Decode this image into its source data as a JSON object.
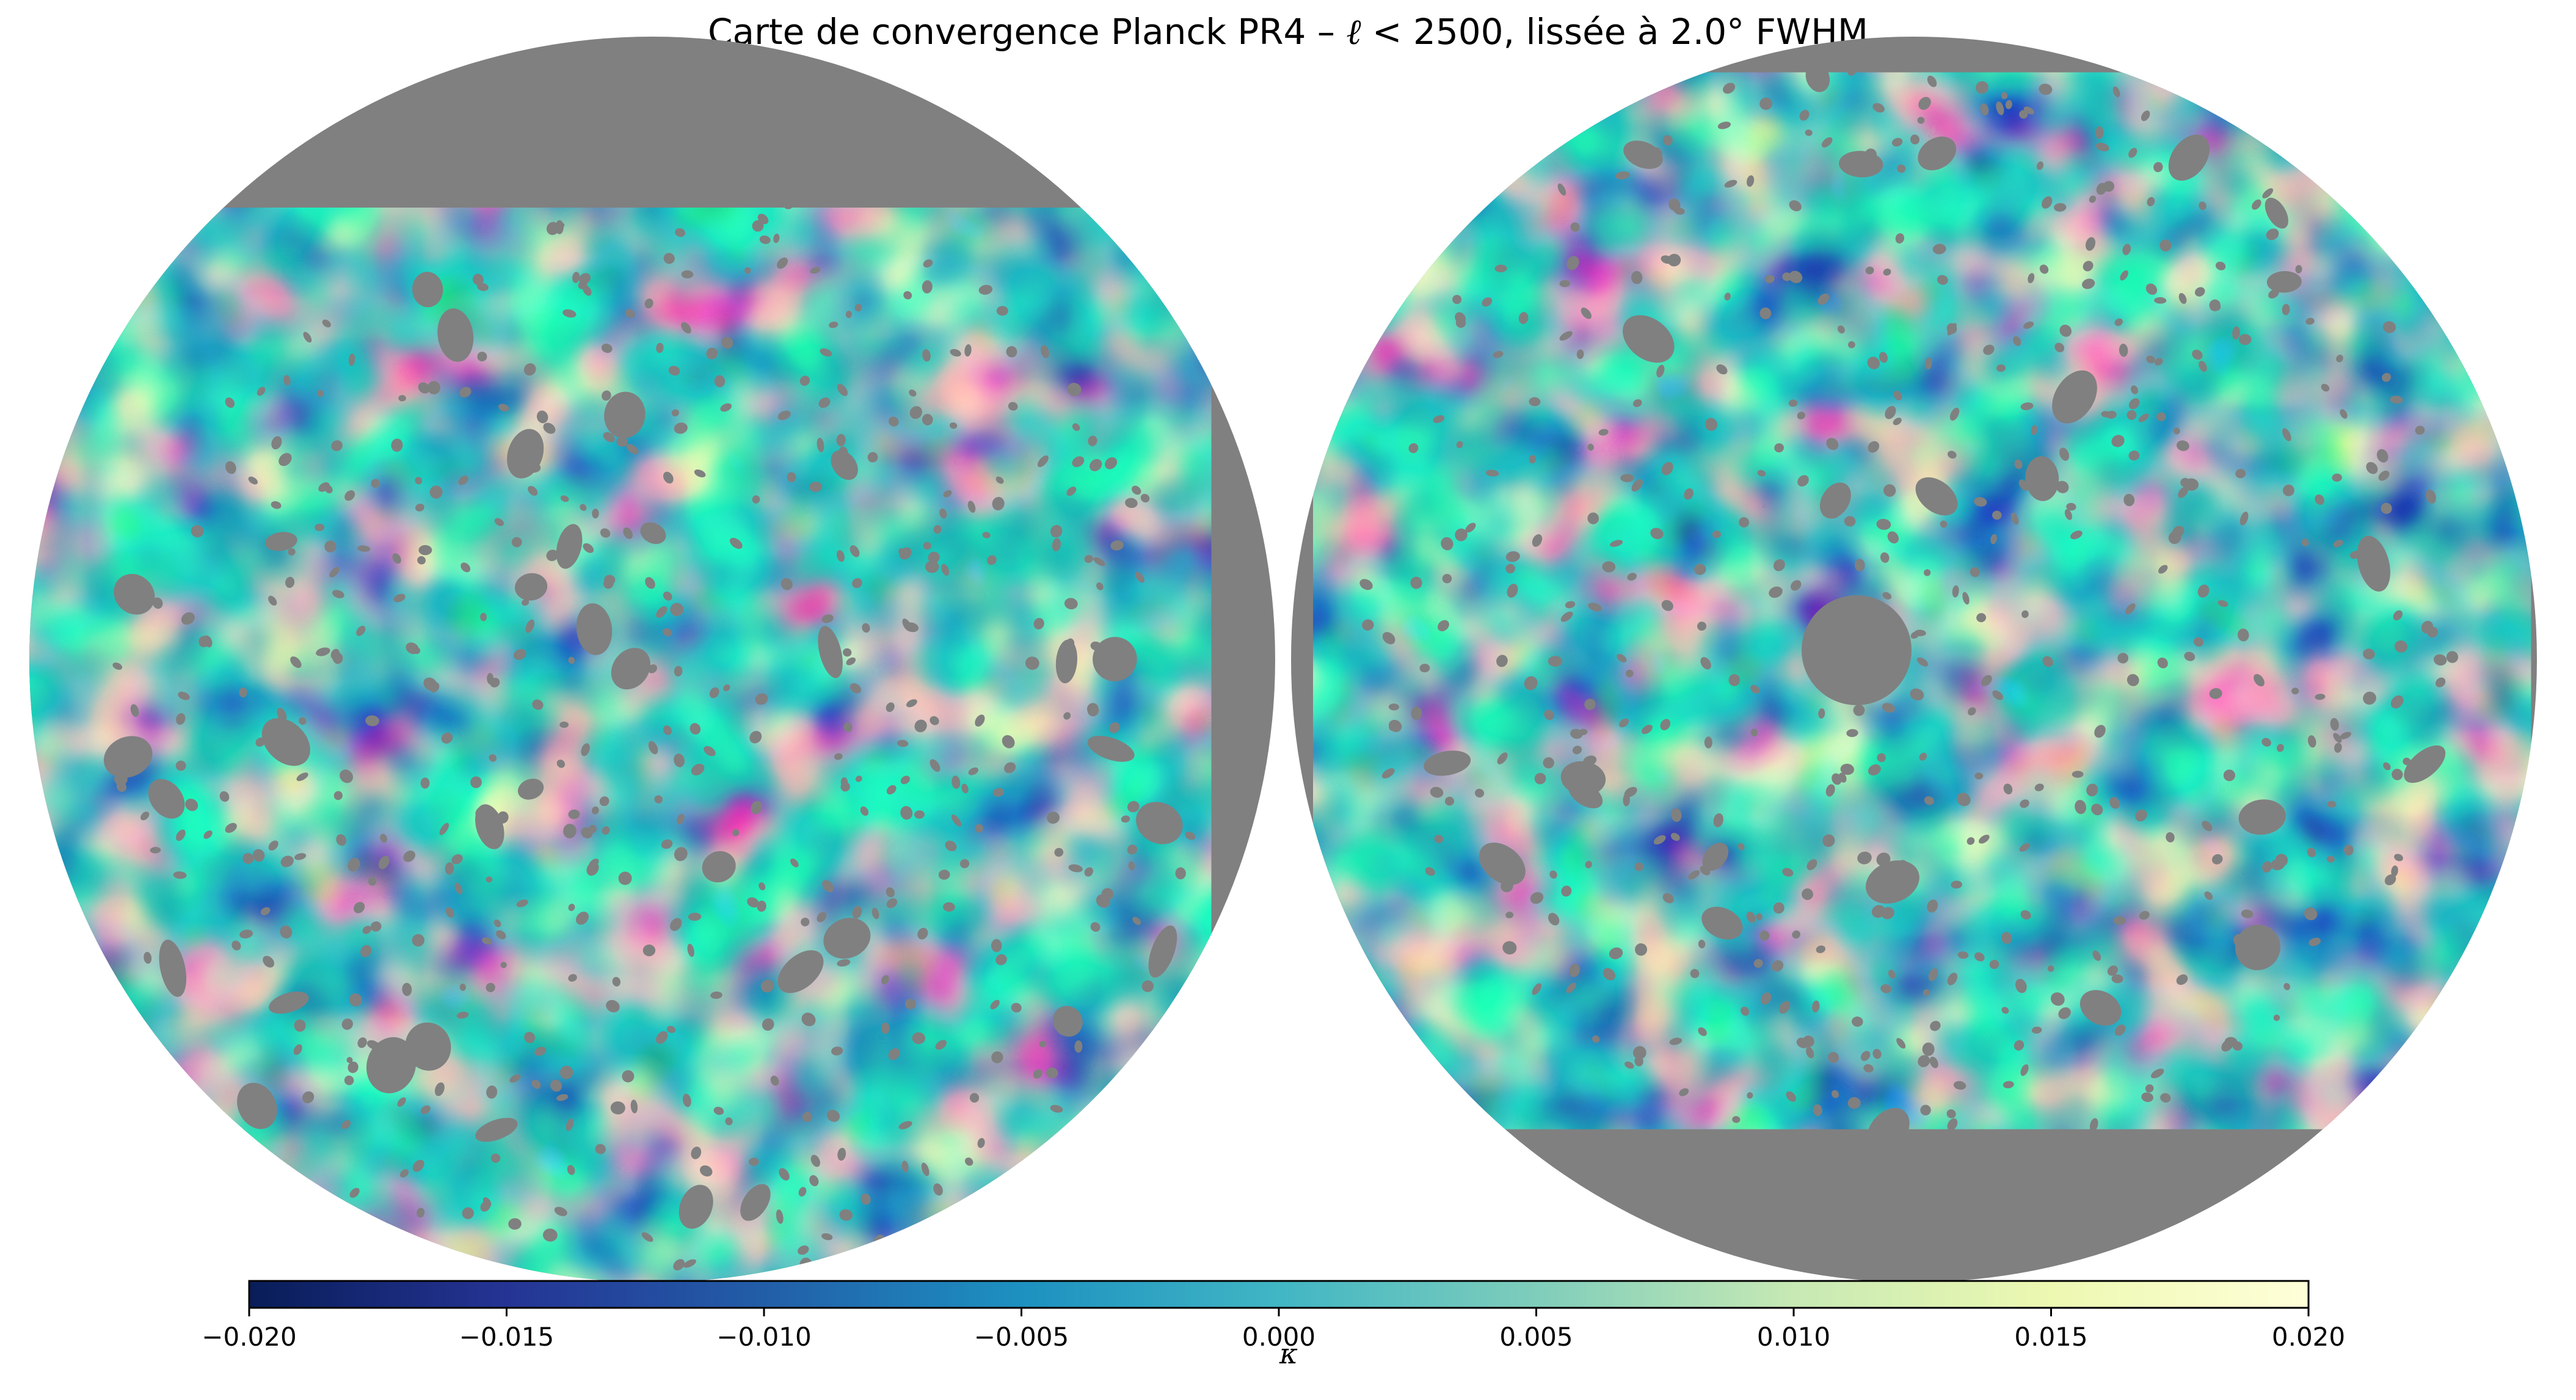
{
  "title": {
    "prefix": "Carte de convergence Planck PR4 – ",
    "ell_symbol": "ℓ",
    "suffix": " < 2500, lissée à 2.0° FWHM"
  },
  "map": {
    "projection": "orthographic",
    "hemispheres": [
      "north",
      "south"
    ],
    "masked_color": "#808080",
    "field_quantity": "κ"
  },
  "colorbar": {
    "label": "κ",
    "colormap": "YlGnBu_r",
    "vmin": -0.02,
    "vmax": 0.02,
    "ticks": [
      "−0.020",
      "−0.015",
      "−0.010",
      "−0.005",
      "0.000",
      "0.005",
      "0.010",
      "0.015",
      "0.020"
    ],
    "tick_values": [
      -0.02,
      -0.015,
      -0.01,
      -0.005,
      0.0,
      0.005,
      0.01,
      0.015,
      0.02
    ],
    "colors": [
      "#081d58",
      "#253494",
      "#225ea8",
      "#1d91c0",
      "#41b6c4",
      "#7fcdbb",
      "#c7e9b4",
      "#edf8b1",
      "#ffffd9"
    ]
  }
}
